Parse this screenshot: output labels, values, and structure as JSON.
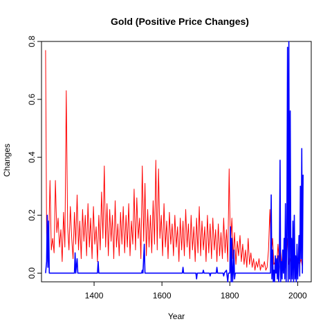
{
  "chart_data": {
    "type": "line",
    "title": "Gold (Positive Price Changes)",
    "xlabel": "Year",
    "ylabel": "Changes",
    "xlim": [
      1245,
      2040
    ],
    "ylim": [
      -0.03,
      0.8
    ],
    "x_ticks": [
      1400,
      1600,
      1800,
      2000
    ],
    "y_ticks": [
      0.0,
      0.2,
      0.4,
      0.6,
      0.8
    ],
    "grid": false,
    "series": [
      {
        "color": "#ff0000",
        "points": [
          [
            1257,
            0.77
          ],
          [
            1260,
            0.14
          ],
          [
            1262,
            0.06
          ],
          [
            1266,
            0.1
          ],
          [
            1270,
            0.32
          ],
          [
            1274,
            0.08
          ],
          [
            1278,
            0.12
          ],
          [
            1282,
            0.07
          ],
          [
            1286,
            0.32
          ],
          [
            1290,
            0.14
          ],
          [
            1294,
            0.19
          ],
          [
            1298,
            0.09
          ],
          [
            1302,
            0.15
          ],
          [
            1306,
            0.04
          ],
          [
            1310,
            0.21
          ],
          [
            1314,
            0.09
          ],
          [
            1318,
            0.63
          ],
          [
            1322,
            0.16
          ],
          [
            1326,
            0.08
          ],
          [
            1330,
            0.23
          ],
          [
            1334,
            0.12
          ],
          [
            1338,
            0.05
          ],
          [
            1342,
            0.21
          ],
          [
            1346,
            0.1
          ],
          [
            1350,
            0.27
          ],
          [
            1354,
            0.08
          ],
          [
            1358,
            0.18
          ],
          [
            1362,
            0.05
          ],
          [
            1366,
            0.22
          ],
          [
            1370,
            0.11
          ],
          [
            1374,
            0.2
          ],
          [
            1378,
            0.06
          ],
          [
            1382,
            0.24
          ],
          [
            1386,
            0.09
          ],
          [
            1390,
            0.19
          ],
          [
            1394,
            0.05
          ],
          [
            1398,
            0.23
          ],
          [
            1402,
            0.1
          ],
          [
            1406,
            0.16
          ],
          [
            1410,
            0.04
          ],
          [
            1414,
            0.2
          ],
          [
            1418,
            0.08
          ],
          [
            1422,
            0.28
          ],
          [
            1426,
            0.12
          ],
          [
            1430,
            0.37
          ],
          [
            1434,
            0.09
          ],
          [
            1438,
            0.24
          ],
          [
            1442,
            0.06
          ],
          [
            1446,
            0.22
          ],
          [
            1450,
            0.11
          ],
          [
            1454,
            0.2
          ],
          [
            1458,
            0.05
          ],
          [
            1462,
            0.25
          ],
          [
            1466,
            0.09
          ],
          [
            1470,
            0.17
          ],
          [
            1474,
            0.06
          ],
          [
            1478,
            0.21
          ],
          [
            1482,
            0.1
          ],
          [
            1486,
            0.23
          ],
          [
            1490,
            0.07
          ],
          [
            1494,
            0.2
          ],
          [
            1498,
            0.09
          ],
          [
            1502,
            0.24
          ],
          [
            1506,
            0.06
          ],
          [
            1510,
            0.18
          ],
          [
            1514,
            0.1
          ],
          [
            1518,
            0.29
          ],
          [
            1522,
            0.08
          ],
          [
            1526,
            0.26
          ],
          [
            1530,
            0.12
          ],
          [
            1534,
            0.19
          ],
          [
            1538,
            0.05
          ],
          [
            1542,
            0.37
          ],
          [
            1546,
            0.11
          ],
          [
            1550,
            0.31
          ],
          [
            1554,
            0.06
          ],
          [
            1558,
            0.22
          ],
          [
            1562,
            0.09
          ],
          [
            1566,
            0.2
          ],
          [
            1570,
            0.07
          ],
          [
            1574,
            0.25
          ],
          [
            1578,
            0.1
          ],
          [
            1582,
            0.39
          ],
          [
            1586,
            0.08
          ],
          [
            1590,
            0.36
          ],
          [
            1594,
            0.12
          ],
          [
            1598,
            0.2
          ],
          [
            1602,
            0.06
          ],
          [
            1606,
            0.24
          ],
          [
            1610,
            0.09
          ],
          [
            1614,
            0.18
          ],
          [
            1618,
            0.05
          ],
          [
            1622,
            0.21
          ],
          [
            1626,
            0.1
          ],
          [
            1630,
            0.17
          ],
          [
            1634,
            0.06
          ],
          [
            1638,
            0.2
          ],
          [
            1642,
            0.09
          ],
          [
            1646,
            0.16
          ],
          [
            1650,
            0.04
          ],
          [
            1654,
            0.19
          ],
          [
            1658,
            0.08
          ],
          [
            1662,
            0.18
          ],
          [
            1666,
            0.06
          ],
          [
            1670,
            0.22
          ],
          [
            1674,
            0.09
          ],
          [
            1678,
            0.17
          ],
          [
            1682,
            0.05
          ],
          [
            1686,
            0.2
          ],
          [
            1690,
            0.08
          ],
          [
            1694,
            0.16
          ],
          [
            1698,
            0.04
          ],
          [
            1702,
            0.19
          ],
          [
            1706,
            0.07
          ],
          [
            1710,
            0.23
          ],
          [
            1714,
            0.06
          ],
          [
            1718,
            0.18
          ],
          [
            1722,
            0.08
          ],
          [
            1726,
            0.16
          ],
          [
            1730,
            0.04
          ],
          [
            1734,
            0.2
          ],
          [
            1738,
            0.07
          ],
          [
            1742,
            0.17
          ],
          [
            1746,
            0.05
          ],
          [
            1750,
            0.19
          ],
          [
            1754,
            0.08
          ],
          [
            1758,
            0.15
          ],
          [
            1762,
            0.04
          ],
          [
            1766,
            0.17
          ],
          [
            1770,
            0.06
          ],
          [
            1774,
            0.14
          ],
          [
            1778,
            0.05
          ],
          [
            1782,
            0.19
          ],
          [
            1786,
            0.07
          ],
          [
            1790,
            0.15
          ],
          [
            1794,
            0.04
          ],
          [
            1798,
            0.36
          ],
          [
            1802,
            0.08
          ],
          [
            1806,
            0.19
          ],
          [
            1810,
            0.05
          ],
          [
            1814,
            0.14
          ],
          [
            1818,
            0.03
          ],
          [
            1822,
            0.11
          ],
          [
            1826,
            0.06
          ],
          [
            1830,
            0.13
          ],
          [
            1834,
            0.04
          ],
          [
            1838,
            0.1
          ],
          [
            1842,
            0.03
          ],
          [
            1846,
            0.08
          ],
          [
            1850,
            0.02
          ],
          [
            1854,
            0.12
          ],
          [
            1858,
            0.03
          ],
          [
            1862,
            0.07
          ],
          [
            1866,
            0.02
          ],
          [
            1870,
            0.05
          ],
          [
            1874,
            0.01
          ],
          [
            1878,
            0.04
          ],
          [
            1882,
            0.02
          ],
          [
            1886,
            0.05
          ],
          [
            1890,
            0.01
          ],
          [
            1894,
            0.03
          ],
          [
            1898,
            0.02
          ],
          [
            1902,
            0.04
          ],
          [
            1906,
            0.01
          ],
          [
            1910,
            0.02
          ],
          [
            1914,
            0.08
          ],
          [
            1918,
            0.22
          ],
          [
            1922,
            0.06
          ],
          [
            1926,
            0.12
          ],
          [
            1930,
            0.03
          ],
          [
            1934,
            0.04
          ],
          [
            1938,
            0.02
          ],
          [
            1942,
            0.1
          ],
          [
            1946,
            0.03
          ],
          [
            1950,
            0.08
          ],
          [
            1954,
            0.02
          ],
          [
            1958,
            0.06
          ],
          [
            1962,
            0.01
          ],
          [
            1966,
            0.04
          ],
          [
            1970,
            0.12
          ],
          [
            1974,
            0.03
          ],
          [
            1978,
            0.05
          ],
          [
            1982,
            0.02
          ],
          [
            1986,
            0.06
          ],
          [
            1990,
            0.03
          ],
          [
            1994,
            0.05
          ],
          [
            1998,
            0.02
          ],
          [
            2002,
            0.04
          ],
          [
            2006,
            0.03
          ],
          [
            2010,
            0.05
          ],
          [
            2014,
            0.02
          ]
        ]
      },
      {
        "color": "#0000ff",
        "points": [
          [
            1257,
            0.0
          ],
          [
            1260,
            0.04
          ],
          [
            1262,
            0.2
          ],
          [
            1264,
            0.02
          ],
          [
            1266,
            0.18
          ],
          [
            1268,
            0.0
          ],
          [
            1300,
            0.0
          ],
          [
            1342,
            0.0
          ],
          [
            1344,
            0.07
          ],
          [
            1346,
            0.0
          ],
          [
            1350,
            0.05
          ],
          [
            1352,
            0.0
          ],
          [
            1410,
            0.0
          ],
          [
            1412,
            0.04
          ],
          [
            1414,
            0.0
          ],
          [
            1540,
            0.0
          ],
          [
            1542,
            0.01
          ],
          [
            1544,
            0.0
          ],
          [
            1548,
            0.1
          ],
          [
            1550,
            0.0
          ],
          [
            1560,
            0.0
          ],
          [
            1600,
            0.0
          ],
          [
            1660,
            0.0
          ],
          [
            1662,
            0.02
          ],
          [
            1664,
            0.0
          ],
          [
            1700,
            0.0
          ],
          [
            1702,
            -0.02
          ],
          [
            1704,
            0.0
          ],
          [
            1720,
            0.0
          ],
          [
            1722,
            0.01
          ],
          [
            1724,
            0.0
          ],
          [
            1740,
            0.0
          ],
          [
            1742,
            -0.01
          ],
          [
            1744,
            0.0
          ],
          [
            1760,
            0.0
          ],
          [
            1762,
            0.02
          ],
          [
            1764,
            0.0
          ],
          [
            1780,
            0.0
          ],
          [
            1782,
            -0.01
          ],
          [
            1784,
            0.0
          ],
          [
            1790,
            0.01
          ],
          [
            1794,
            -0.03
          ],
          [
            1796,
            0.0
          ],
          [
            1800,
            0.0
          ],
          [
            1802,
            0.16
          ],
          [
            1804,
            -0.03
          ],
          [
            1806,
            0.12
          ],
          [
            1808,
            -0.03
          ],
          [
            1810,
            0.0
          ],
          [
            1812,
            0.08
          ],
          [
            1814,
            -0.02
          ],
          [
            1816,
            0.0
          ],
          [
            1900,
            0.0
          ],
          [
            1920,
            0.0
          ],
          [
            1922,
            0.27
          ],
          [
            1924,
            -0.02
          ],
          [
            1926,
            0.08
          ],
          [
            1928,
            -0.03
          ],
          [
            1930,
            0.01
          ],
          [
            1932,
            -0.03
          ],
          [
            1934,
            0.06
          ],
          [
            1936,
            0.0
          ],
          [
            1938,
            0.05
          ],
          [
            1940,
            -0.02
          ],
          [
            1942,
            0.06
          ],
          [
            1944,
            -0.03
          ],
          [
            1946,
            0.02
          ],
          [
            1948,
            0.39
          ],
          [
            1950,
            -0.03
          ],
          [
            1952,
            0.04
          ],
          [
            1954,
            -0.02
          ],
          [
            1956,
            0.08
          ],
          [
            1958,
            0.0
          ],
          [
            1960,
            0.12
          ],
          [
            1962,
            -0.02
          ],
          [
            1964,
            0.24
          ],
          [
            1966,
            -0.03
          ],
          [
            1968,
            0.13
          ],
          [
            1970,
            0.78
          ],
          [
            1972,
            -0.03
          ],
          [
            1974,
            0.8
          ],
          [
            1976,
            -0.02
          ],
          [
            1978,
            0.56
          ],
          [
            1980,
            -0.03
          ],
          [
            1982,
            0.12
          ],
          [
            1984,
            -0.02
          ],
          [
            1986,
            0.18
          ],
          [
            1988,
            -0.03
          ],
          [
            1990,
            0.2
          ],
          [
            1992,
            -0.02
          ],
          [
            1994,
            0.06
          ],
          [
            1996,
            -0.03
          ],
          [
            1998,
            0.1
          ],
          [
            2000,
            -0.02
          ],
          [
            2002,
            0.05
          ],
          [
            2004,
            0.13
          ],
          [
            2006,
            -0.01
          ],
          [
            2008,
            0.3
          ],
          [
            2010,
            0.05
          ],
          [
            2012,
            0.43
          ],
          [
            2014,
            0.0
          ],
          [
            2016,
            0.34
          ]
        ]
      }
    ]
  }
}
